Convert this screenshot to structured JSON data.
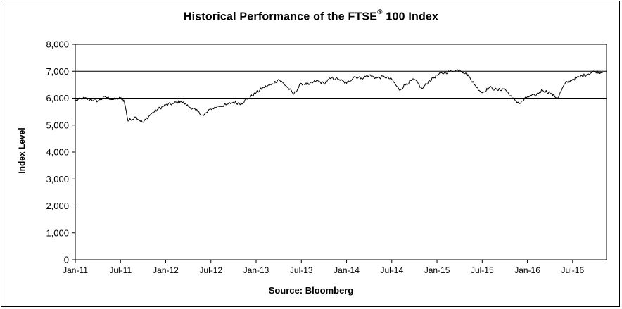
{
  "chart_data": {
    "type": "line",
    "title_main": "Historical Performance of the FTSE",
    "title_sup": "®",
    "title_tail": " 100 Index",
    "ylabel": "Index Level",
    "source": "Source: Bloomberg",
    "ylim": [
      0,
      8000
    ],
    "y_ticks": [
      "0",
      "1,000",
      "2,000",
      "3,000",
      "4,000",
      "5,000",
      "6,000",
      "7,000",
      "8,000"
    ],
    "y_tick_values": [
      0,
      1000,
      2000,
      3000,
      4000,
      5000,
      6000,
      7000,
      8000
    ],
    "gridlines": [
      6000,
      7000,
      8000
    ],
    "x_ticks": [
      "Jan-11",
      "Jul-11",
      "Jan-12",
      "Jul-12",
      "Jan-13",
      "Jul-13",
      "Jan-14",
      "Jul-14",
      "Jan-15",
      "Jul-15",
      "Jan-16",
      "Jul-16"
    ],
    "x_range": [
      0,
      70.5
    ],
    "series": [
      {
        "name": "FTSE 100",
        "x": [
          0,
          1,
          2,
          3,
          4,
          5,
          6,
          6.5,
          7,
          8,
          9,
          10,
          11,
          12,
          13,
          14,
          15,
          16,
          17,
          18,
          19,
          20,
          21,
          22,
          23,
          24,
          25,
          26,
          27,
          28,
          29,
          30,
          31,
          32,
          33,
          34,
          35,
          36,
          37,
          38,
          39,
          40,
          41,
          42,
          43,
          44,
          45,
          46,
          47,
          48,
          49,
          50,
          51,
          52,
          52.5,
          53,
          54,
          55,
          56,
          57,
          58,
          59,
          60,
          61,
          62,
          63,
          64,
          65,
          66,
          67,
          68,
          69,
          70
        ],
        "values": [
          5900,
          6000,
          5950,
          5900,
          6050,
          5950,
          6000,
          5900,
          5150,
          5300,
          5100,
          5400,
          5600,
          5750,
          5800,
          5900,
          5700,
          5550,
          5350,
          5600,
          5700,
          5750,
          5850,
          5800,
          6000,
          6200,
          6400,
          6500,
          6700,
          6450,
          6150,
          6550,
          6500,
          6650,
          6550,
          6750,
          6700,
          6550,
          6800,
          6750,
          6850,
          6750,
          6800,
          6700,
          6300,
          6550,
          6700,
          6350,
          6650,
          6850,
          6950,
          7000,
          7050,
          6900,
          6700,
          6500,
          6200,
          6400,
          6300,
          6350,
          6000,
          5800,
          6050,
          6100,
          6300,
          6200,
          6000,
          6550,
          6700,
          6800,
          6900,
          7000,
          6950
        ]
      }
    ]
  }
}
